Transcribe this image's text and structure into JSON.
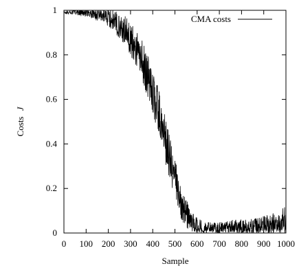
{
  "chart_data": {
    "type": "line",
    "xlabel": "Sample",
    "ylabel": "Costs",
    "ylabel_symbol": "J",
    "xlim": [
      0,
      1000
    ],
    "ylim": [
      0,
      1
    ],
    "xticks": [
      "0",
      "100",
      "200",
      "300",
      "400",
      "500",
      "600",
      "700",
      "800",
      "900",
      "1000"
    ],
    "yticks": [
      "0",
      "0.2",
      "0.4",
      "0.6",
      "0.8",
      "1"
    ],
    "grid": false,
    "legend_position": "top-right",
    "series": [
      {
        "name": "CMA costs",
        "color": "#000000",
        "x": [
          0,
          25,
          50,
          75,
          100,
          125,
          150,
          175,
          200,
          225,
          250,
          275,
          300,
          325,
          350,
          375,
          400,
          425,
          450,
          475,
          500,
          525,
          550,
          575,
          600,
          625,
          650,
          675,
          700,
          725,
          750,
          775,
          800,
          825,
          850,
          875,
          900,
          925,
          950,
          975,
          1000
        ],
        "y": [
          0.99,
          0.99,
          0.995,
          0.99,
          0.99,
          0.985,
          0.98,
          0.975,
          0.97,
          0.95,
          0.93,
          0.91,
          0.87,
          0.83,
          0.78,
          0.71,
          0.63,
          0.55,
          0.45,
          0.34,
          0.24,
          0.15,
          0.09,
          0.05,
          0.03,
          0.02,
          0.02,
          0.02,
          0.02,
          0.02,
          0.025,
          0.025,
          0.025,
          0.025,
          0.025,
          0.025,
          0.03,
          0.035,
          0.04,
          0.045,
          0.05
        ],
        "noise_amplitude": [
          0.004,
          0.006,
          0.008,
          0.01,
          0.012,
          0.014,
          0.016,
          0.02,
          0.025,
          0.03,
          0.035,
          0.04,
          0.045,
          0.05,
          0.055,
          0.06,
          0.065,
          0.065,
          0.065,
          0.065,
          0.06,
          0.05,
          0.04,
          0.03,
          0.025,
          0.02,
          0.018,
          0.018,
          0.018,
          0.018,
          0.02,
          0.022,
          0.022,
          0.022,
          0.024,
          0.026,
          0.028,
          0.03,
          0.035,
          0.04,
          0.045
        ]
      }
    ]
  }
}
